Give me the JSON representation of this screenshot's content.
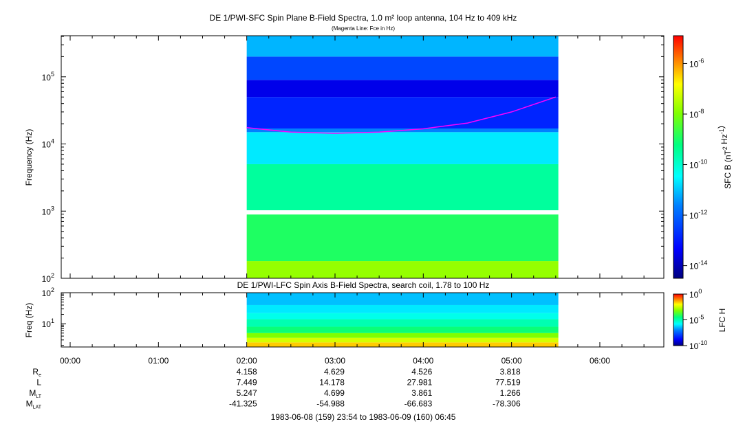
{
  "chart_data": [
    {
      "type": "heatmap",
      "title": "DE 1/PWI-SFC  Spin Plane B-Field Spectra, 1.0 m² loop antenna, 104 Hz to 409 kHz",
      "subtitle": "(Magenta Line: Fce in Hz)",
      "xlabel": "",
      "ylabel": "Frequency (Hz)",
      "y_scale": "log",
      "ylim": [
        100,
        409000
      ],
      "y_ticks": [
        "10^2",
        "10^3",
        "10^4",
        "10^5"
      ],
      "x_ticks": [
        "00:00",
        "01:00",
        "02:00",
        "03:00",
        "04:00",
        "05:00",
        "06:00"
      ],
      "data_time_range_hours": [
        2.0,
        5.53
      ],
      "data_gap_hz": [
        890,
        1030
      ],
      "colorbar": {
        "label": "SFC B (nT² Hz⁻¹)",
        "scale": "log",
        "ticks": [
          "10^-6",
          "10^-8",
          "10^-10",
          "10^-12",
          "10^-14"
        ]
      },
      "series": [
        {
          "name": "Fce",
          "color": "#ff00ff",
          "x_hours": [
            2.0,
            2.5,
            3.0,
            3.5,
            4.0,
            4.5,
            5.0,
            5.5
          ],
          "y_hz": [
            17500,
            15000,
            14400,
            15000,
            16800,
            20500,
            30000,
            50000
          ]
        }
      ],
      "bands": [
        {
          "f_lo": 1030,
          "f_hi": 5000,
          "level": 0.52
        },
        {
          "f_lo": 5000,
          "f_hi": 15000,
          "level": 0.4
        },
        {
          "f_lo": 15000,
          "f_hi": 17000,
          "level": 0.3
        },
        {
          "f_lo": 17000,
          "f_hi": 50000,
          "level": 0.17
        },
        {
          "f_lo": 50000,
          "f_hi": 90000,
          "level": 0.1
        },
        {
          "f_lo": 90000,
          "f_hi": 200000,
          "level": 0.22
        },
        {
          "f_lo": 200000,
          "f_hi": 409000,
          "level": 0.35
        },
        {
          "f_lo": 100,
          "f_hi": 180,
          "level": 0.7
        },
        {
          "f_lo": 180,
          "f_hi": 890,
          "level": 0.58
        }
      ]
    },
    {
      "type": "heatmap",
      "title": "DE 1/PWI-LFC  Spin Axis B-Field Spectra, search coil, 1.78 to 100 Hz",
      "ylabel": "Freq (Hz)",
      "y_scale": "log",
      "ylim": [
        1.78,
        100
      ],
      "y_ticks": [
        "10^1",
        "10^2"
      ],
      "data_time_range_hours": [
        2.0,
        5.53
      ],
      "colorbar": {
        "label": "LFC H",
        "scale": "log",
        "ticks": [
          "10^0",
          "10^-5",
          "10^-10"
        ]
      },
      "bands": [
        {
          "f_lo": 1.78,
          "f_hi": 2.5,
          "level": 0.84
        },
        {
          "f_lo": 2.5,
          "f_hi": 3.5,
          "level": 0.76
        },
        {
          "f_lo": 3.5,
          "f_hi": 5.0,
          "level": 0.68
        },
        {
          "f_lo": 5.0,
          "f_hi": 8.0,
          "level": 0.56
        },
        {
          "f_lo": 8.0,
          "f_hi": 14.0,
          "level": 0.5
        },
        {
          "f_lo": 14.0,
          "f_hi": 22.0,
          "level": 0.44
        },
        {
          "f_lo": 22.0,
          "f_hi": 40.0,
          "level": 0.4
        },
        {
          "f_lo": 40.0,
          "f_hi": 100.0,
          "level": 0.36
        }
      ]
    }
  ],
  "ephemeris": {
    "rows": [
      {
        "label": "R",
        "sub": "e",
        "values": [
          "4.158",
          "4.629",
          "4.526",
          "3.818"
        ]
      },
      {
        "label": "L",
        "sub": "",
        "values": [
          "7.449",
          "14.178",
          "27.981",
          "77.519"
        ]
      },
      {
        "label": "M",
        "sub": "LT",
        "values": [
          "5.247",
          "4.699",
          "3.861",
          "1.266"
        ]
      },
      {
        "label": "M",
        "sub": "LAT",
        "values": [
          "-41.325",
          "-54.988",
          "-66.683",
          "-78.306"
        ]
      }
    ],
    "time_range": "1983-06-08 (159) 23:54 to 1983-06-09 (160) 06:45"
  }
}
